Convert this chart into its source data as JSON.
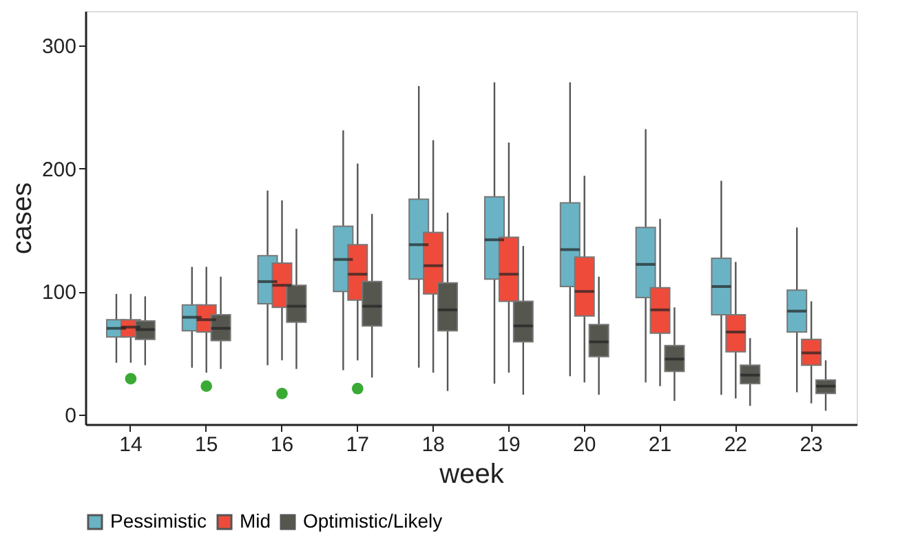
{
  "chart_data": {
    "type": "box",
    "xlabel": "week",
    "ylabel": "cases",
    "categories": [
      "14",
      "15",
      "16",
      "17",
      "18",
      "19",
      "20",
      "21",
      "22",
      "23"
    ],
    "ylim": [
      -8,
      328
    ],
    "yticks": [
      0,
      100,
      200,
      300
    ],
    "grid": false,
    "legend": "bottom",
    "series": [
      {
        "name": "Pessimistic",
        "color": "#69b3c4",
        "boxes": [
          {
            "low": 42,
            "q1": 63,
            "median": 70,
            "q3": 77,
            "high": 98
          },
          {
            "low": 38,
            "q1": 68,
            "median": 79,
            "q3": 89,
            "high": 120
          },
          {
            "low": 40,
            "q1": 90,
            "median": 108,
            "q3": 129,
            "high": 182
          },
          {
            "low": 36,
            "q1": 100,
            "median": 126,
            "q3": 153,
            "high": 231
          },
          {
            "low": 38,
            "q1": 110,
            "median": 138,
            "q3": 175,
            "high": 267
          },
          {
            "low": 25,
            "q1": 110,
            "median": 142,
            "q3": 177,
            "high": 270
          },
          {
            "low": 31,
            "q1": 104,
            "median": 134,
            "q3": 172,
            "high": 270
          },
          {
            "low": 26,
            "q1": 95,
            "median": 122,
            "q3": 152,
            "high": 232
          },
          {
            "low": 16,
            "q1": 81,
            "median": 104,
            "q3": 127,
            "high": 190
          },
          {
            "low": 18,
            "q1": 67,
            "median": 84,
            "q3": 101,
            "high": 152
          }
        ]
      },
      {
        "name": "Mid",
        "color": "#ee4b3b",
        "boxes": [
          {
            "low": 42,
            "q1": 63,
            "median": 71,
            "q3": 77,
            "high": 98
          },
          {
            "low": 34,
            "q1": 67,
            "median": 77,
            "q3": 89,
            "high": 120
          },
          {
            "low": 44,
            "q1": 87,
            "median": 105,
            "q3": 123,
            "high": 174
          },
          {
            "low": 44,
            "q1": 93,
            "median": 114,
            "q3": 138,
            "high": 204
          },
          {
            "low": 34,
            "q1": 98,
            "median": 121,
            "q3": 148,
            "high": 223
          },
          {
            "low": 34,
            "q1": 92,
            "median": 114,
            "q3": 144,
            "high": 221
          },
          {
            "low": 26,
            "q1": 80,
            "median": 100,
            "q3": 128,
            "high": 194
          },
          {
            "low": 23,
            "q1": 66,
            "median": 85,
            "q3": 103,
            "high": 159
          },
          {
            "low": 13,
            "q1": 51,
            "median": 67,
            "q3": 81,
            "high": 124
          },
          {
            "low": 9,
            "q1": 40,
            "median": 50,
            "q3": 61,
            "high": 92
          }
        ]
      },
      {
        "name": "Optimistic/Likely",
        "color": "#55574f",
        "boxes": [
          {
            "low": 40,
            "q1": 61,
            "median": 69,
            "q3": 76,
            "high": 96
          },
          {
            "low": 37,
            "q1": 60,
            "median": 70,
            "q3": 81,
            "high": 112
          },
          {
            "low": 37,
            "q1": 75,
            "median": 88,
            "q3": 105,
            "high": 151
          },
          {
            "low": 30,
            "q1": 72,
            "median": 88,
            "q3": 108,
            "high": 163
          },
          {
            "low": 19,
            "q1": 68,
            "median": 85,
            "q3": 107,
            "high": 164
          },
          {
            "low": 16,
            "q1": 59,
            "median": 72,
            "q3": 92,
            "high": 137
          },
          {
            "low": 16,
            "q1": 47,
            "median": 59,
            "q3": 73,
            "high": 112
          },
          {
            "low": 11,
            "q1": 35,
            "median": 45,
            "q3": 56,
            "high": 87
          },
          {
            "low": 7,
            "q1": 25,
            "median": 32,
            "q3": 40,
            "high": 62
          },
          {
            "low": 3,
            "q1": 17,
            "median": 23,
            "q3": 28,
            "high": 44
          }
        ]
      },
      {
        "type": "scatter",
        "color": "#3aaa35",
        "marker": "circle",
        "x": [
          "14",
          "15",
          "16",
          "17"
        ],
        "values": [
          29,
          23,
          17,
          21
        ]
      }
    ]
  }
}
